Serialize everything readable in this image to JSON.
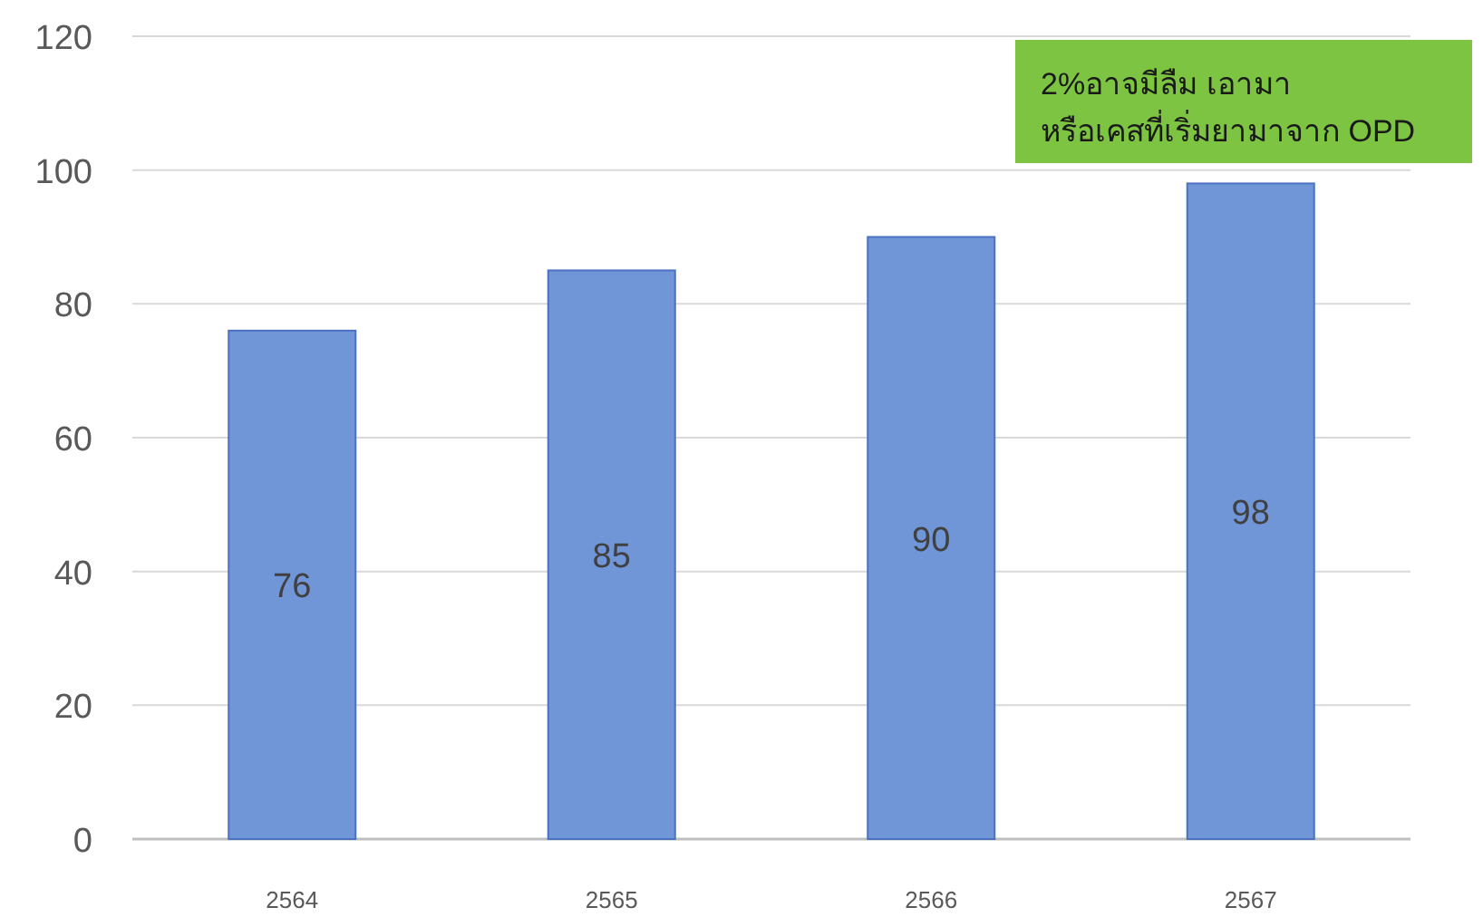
{
  "chart_data": {
    "type": "bar",
    "categories": [
      "2564",
      "2565",
      "2566",
      "2567"
    ],
    "values": [
      76,
      85,
      90,
      98
    ],
    "color": "#7096d8",
    "ylim": [
      0,
      120
    ],
    "yticks": [
      0,
      20,
      40,
      60,
      80,
      100,
      120
    ],
    "grid": "y",
    "data_labels": true,
    "annotations": [
      "2%อาจมีลืม เอามา\nหรือเคสที่เริ่มยามาจาก OPD"
    ]
  }
}
